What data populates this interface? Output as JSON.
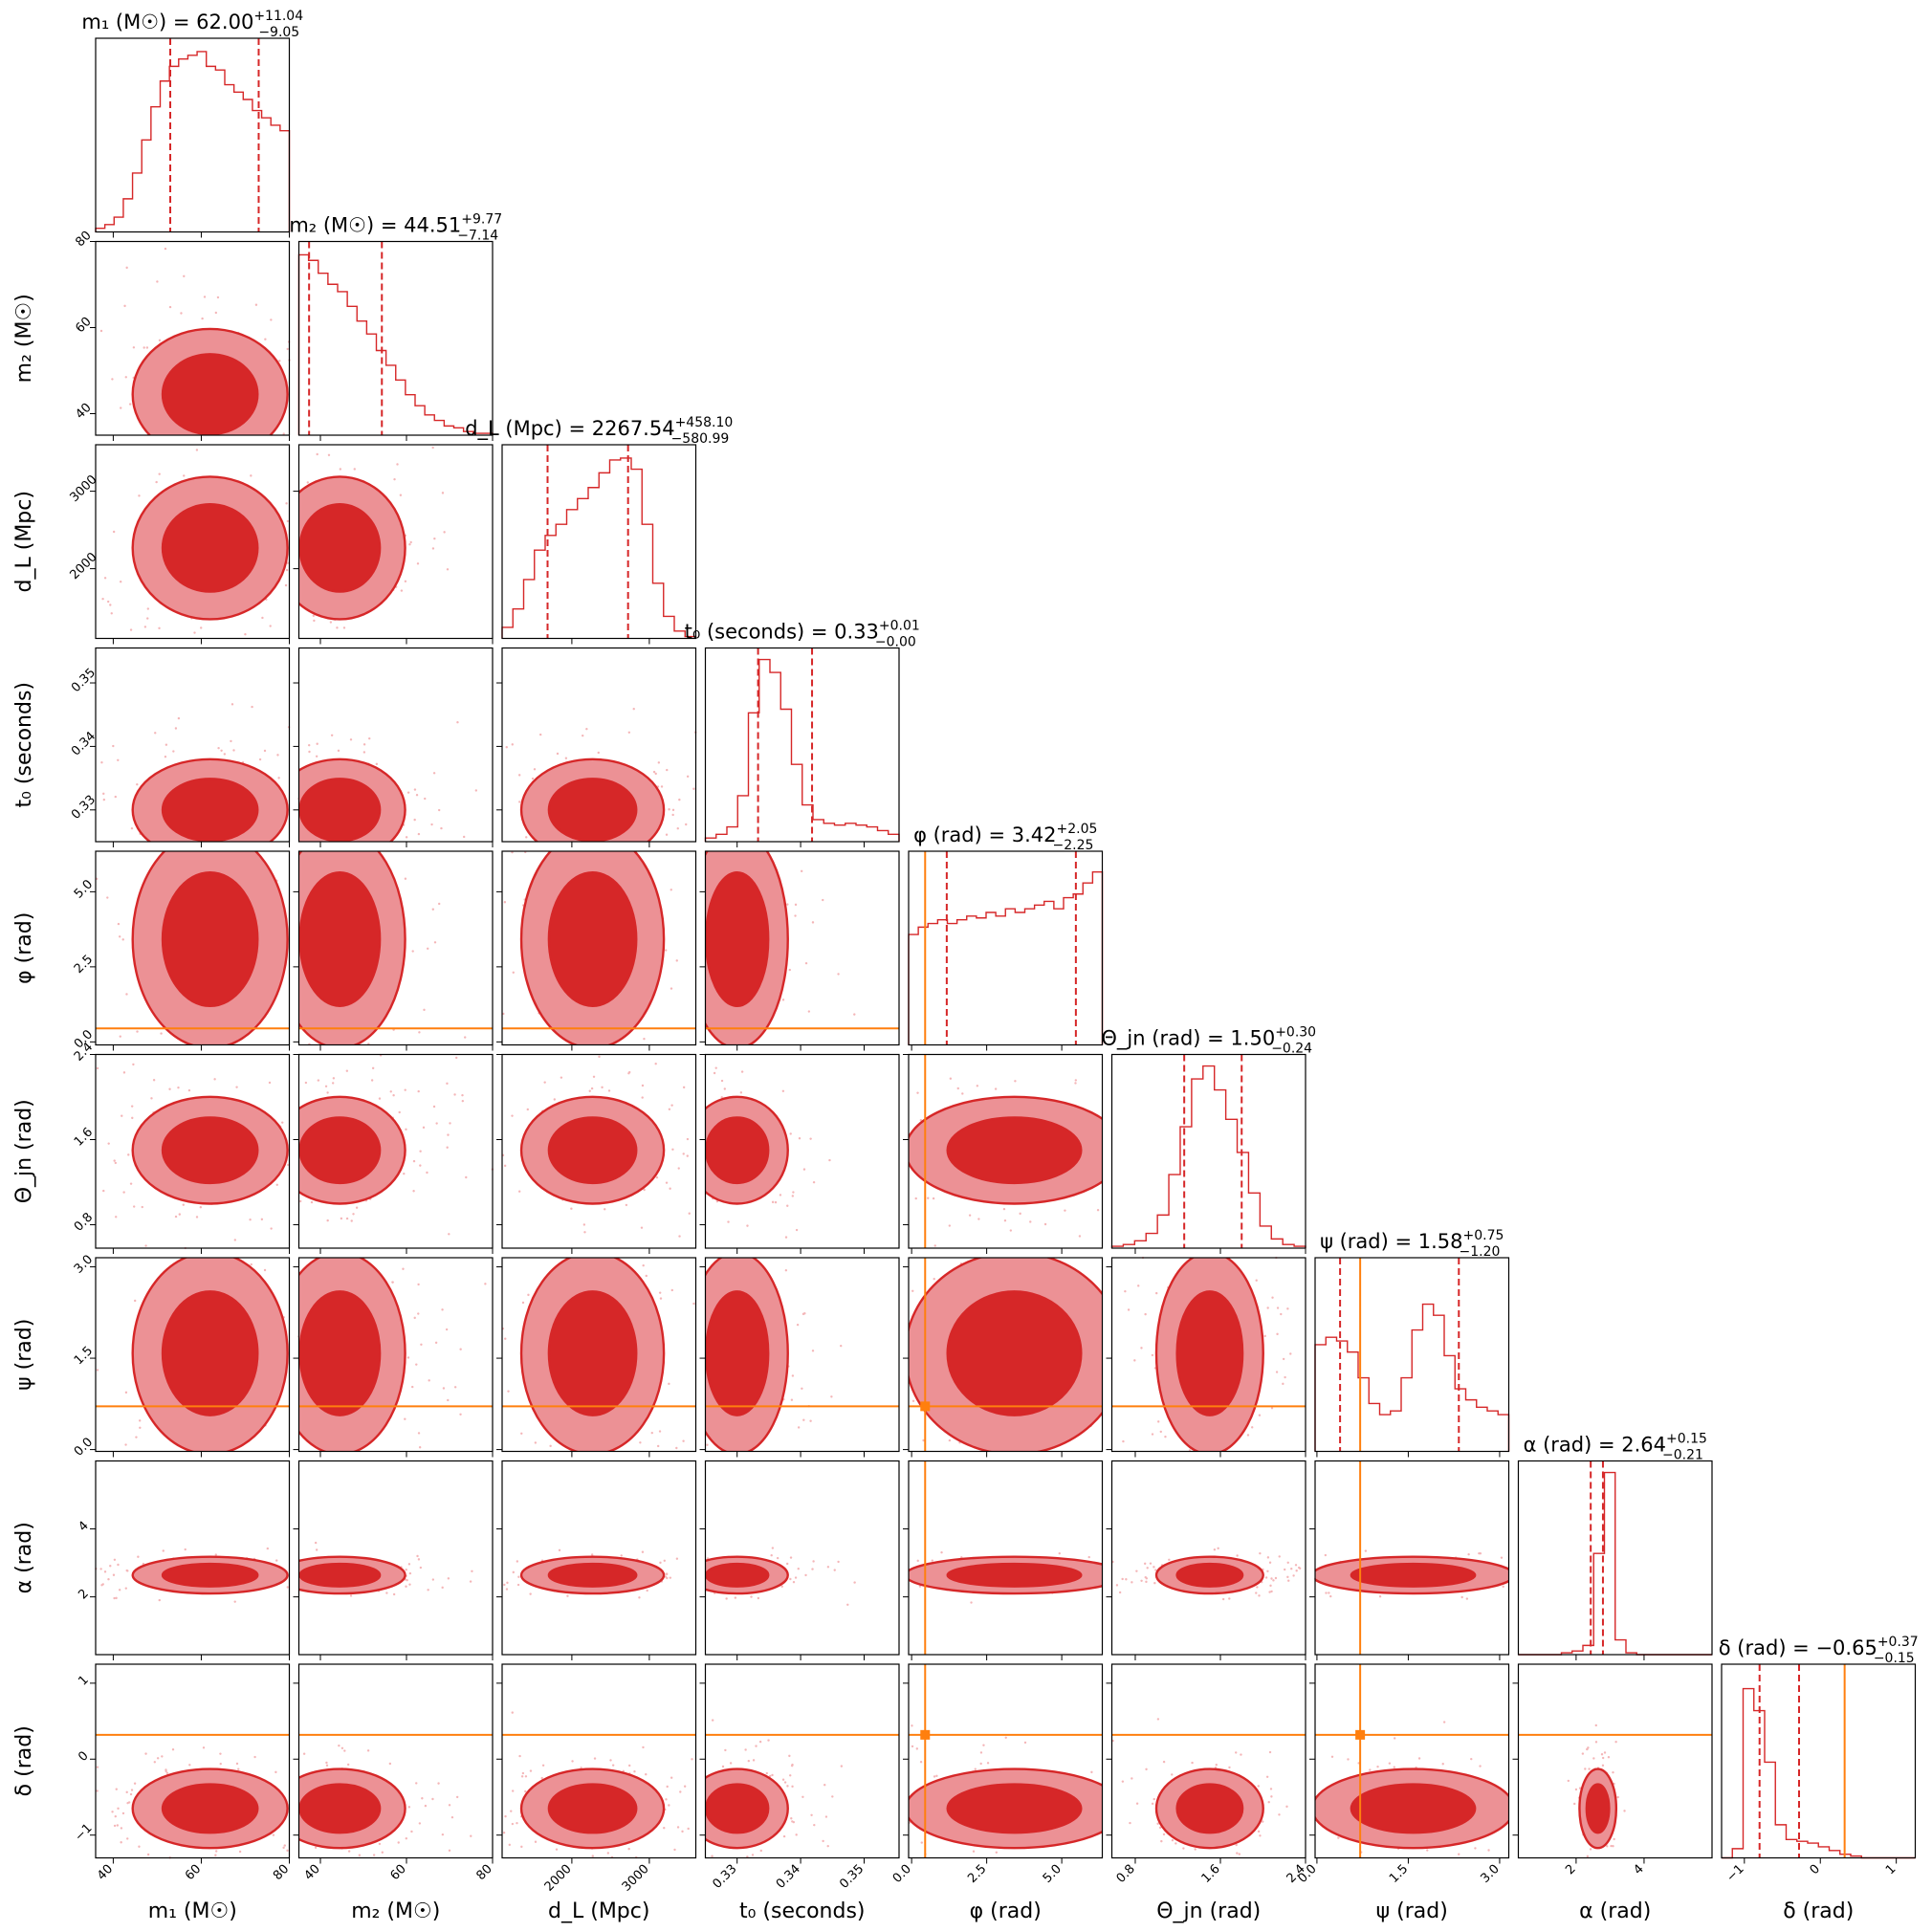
{
  "chart_data": {
    "type": "corner",
    "accent": "#d62728",
    "truth_color": "#ff7f0e",
    "params": [
      {
        "key": "m1",
        "label": "m₁ (M☉)",
        "title": "m₁ (M☉) = 62.00",
        "median": 62.0,
        "err_plus": 11.04,
        "err_minus": 9.05,
        "range": [
          36,
          80
        ],
        "ticks": [
          40,
          60,
          80
        ],
        "tick_labels": [
          "40",
          "60",
          "80"
        ],
        "lower_q": 52.95,
        "upper_q": 73.04,
        "truth": null
      },
      {
        "key": "m2",
        "label": "m₂ (M☉)",
        "title": "m₂ (M☉) = 44.51",
        "median": 44.51,
        "err_plus": 9.77,
        "err_minus": 7.14,
        "range": [
          35,
          80
        ],
        "ticks": [
          40,
          60,
          80
        ],
        "tick_labels": [
          "40",
          "60",
          "80"
        ],
        "lower_q": 37.37,
        "upper_q": 54.28,
        "truth": null
      },
      {
        "key": "dL",
        "label": "d_L (Mpc)",
        "title": "d_L (Mpc) = 2267.54",
        "median": 2267.54,
        "err_plus": 458.1,
        "err_minus": 580.99,
        "range": [
          1100,
          3600
        ],
        "ticks": [
          2000,
          3000
        ],
        "tick_labels": [
          "2000",
          "3000"
        ],
        "lower_q": 1686.55,
        "upper_q": 2725.64,
        "truth": null
      },
      {
        "key": "t0",
        "label": "t₀ (seconds)",
        "title": "t₀ (seconds) = 0.33",
        "median": 0.33,
        "err_plus": 0.01,
        "err_minus": 0.0,
        "range": [
          0.325,
          0.3555
        ],
        "ticks": [
          0.33,
          0.34,
          0.35
        ],
        "tick_labels": [
          "0.33",
          "0.34",
          "0.35"
        ],
        "lower_q": 0.3333,
        "upper_q": 0.3418,
        "truth": null
      },
      {
        "key": "phi",
        "label": "φ (rad)",
        "title": "φ (rad) = 3.42",
        "median": 3.42,
        "err_plus": 2.05,
        "err_minus": 2.25,
        "range": [
          -0.1,
          6.35
        ],
        "ticks": [
          0.0,
          2.5,
          5.0
        ],
        "tick_labels": [
          "0.0",
          "2.5",
          "5.0"
        ],
        "lower_q": 1.17,
        "upper_q": 5.47,
        "truth": 0.45
      },
      {
        "key": "theta",
        "label": "Θ_jn (rad)",
        "title": "Θ_jn (rad) = 1.50",
        "median": 1.5,
        "err_plus": 0.3,
        "err_minus": 0.24,
        "range": [
          0.58,
          2.4
        ],
        "ticks": [
          0.8,
          1.6,
          2.4
        ],
        "tick_labels": [
          "0.8",
          "1.6",
          "2.4"
        ],
        "lower_q": 1.26,
        "upper_q": 1.8,
        "truth": null
      },
      {
        "key": "psi",
        "label": "ψ (rad)",
        "title": "ψ (rad) = 1.58",
        "median": 1.58,
        "err_plus": 0.75,
        "err_minus": 1.2,
        "range": [
          -0.03,
          3.15
        ],
        "ticks": [
          0.0,
          1.5,
          3.0
        ],
        "tick_labels": [
          "0.0",
          "1.5",
          "3.0"
        ],
        "lower_q": 0.38,
        "upper_q": 2.33,
        "truth": 0.71
      },
      {
        "key": "alpha",
        "label": "α (rad)",
        "title": "α (rad) = 2.64",
        "median": 2.64,
        "err_plus": 0.15,
        "err_minus": 0.21,
        "range": [
          0.3,
          6.0
        ],
        "ticks": [
          2,
          4
        ],
        "tick_labels": [
          "2",
          "4"
        ],
        "lower_q": 2.43,
        "upper_q": 2.79,
        "truth": null
      },
      {
        "key": "delta",
        "label": "δ (rad)",
        "title": "δ (rad) = −0.65",
        "median": -0.65,
        "err_plus": 0.37,
        "err_minus": 0.15,
        "range": [
          -1.3,
          1.25
        ],
        "ticks": [
          -1,
          0,
          1
        ],
        "tick_labels": [
          "−1",
          "0",
          "1"
        ],
        "lower_q": -0.8,
        "upper_q": -0.28,
        "truth": 0.32
      }
    ],
    "histograms": [
      [
        0.02,
        0.04,
        0.08,
        0.18,
        0.32,
        0.5,
        0.68,
        0.82,
        0.9,
        0.94,
        0.96,
        0.98,
        0.9,
        0.88,
        0.8,
        0.76,
        0.72,
        0.66,
        0.62,
        0.58,
        0.55
      ],
      [
        0.98,
        0.95,
        0.88,
        0.82,
        0.78,
        0.7,
        0.62,
        0.55,
        0.46,
        0.38,
        0.3,
        0.22,
        0.16,
        0.11,
        0.08,
        0.05,
        0.04,
        0.02,
        0.01,
        0.01
      ],
      [
        0.06,
        0.16,
        0.32,
        0.48,
        0.56,
        0.62,
        0.7,
        0.76,
        0.82,
        0.9,
        0.97,
        0.98,
        0.92,
        0.62,
        0.3,
        0.12,
        0.04,
        0.01
      ],
      [
        0.02,
        0.04,
        0.08,
        0.25,
        0.7,
        0.99,
        0.92,
        0.72,
        0.42,
        0.2,
        0.12,
        0.1,
        0.09,
        0.1,
        0.09,
        0.08,
        0.06,
        0.04
      ],
      [
        0.6,
        0.64,
        0.66,
        0.68,
        0.66,
        0.68,
        0.7,
        0.69,
        0.72,
        0.7,
        0.74,
        0.72,
        0.74,
        0.76,
        0.78,
        0.74,
        0.8,
        0.82,
        0.88,
        0.94
      ],
      [
        0.01,
        0.02,
        0.04,
        0.08,
        0.18,
        0.4,
        0.66,
        0.92,
        0.99,
        0.86,
        0.7,
        0.52,
        0.3,
        0.12,
        0.05,
        0.02,
        0.01
      ],
      [
        0.58,
        0.62,
        0.6,
        0.54,
        0.4,
        0.26,
        0.2,
        0.22,
        0.4,
        0.66,
        0.8,
        0.74,
        0.52,
        0.34,
        0.28,
        0.24,
        0.22,
        0.2
      ],
      [
        0.0,
        0.0,
        0.0,
        0.0,
        0.01,
        0.02,
        0.05,
        0.55,
        0.99,
        0.08,
        0.01,
        0.0,
        0.0,
        0.0,
        0.0,
        0.0,
        0.0,
        0.0
      ],
      [
        0.0,
        0.05,
        0.92,
        0.8,
        0.52,
        0.18,
        0.1,
        0.09,
        0.08,
        0.06,
        0.04,
        0.02,
        0.01,
        0.0,
        0.0,
        0.0,
        0.0,
        0.0
      ]
    ]
  }
}
